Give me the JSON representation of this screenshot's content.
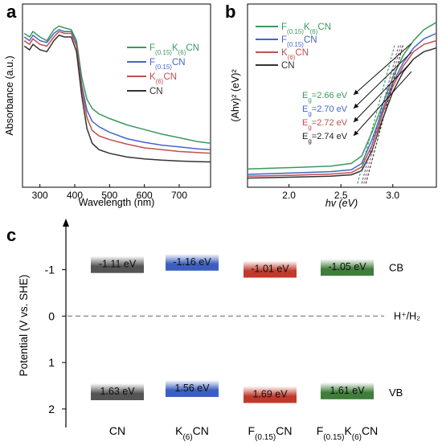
{
  "panels": {
    "a": "a",
    "b": "b",
    "c": "c"
  },
  "chart_data": [
    {
      "panel": "a",
      "type": "line",
      "xlabel": "Wavelength (nm)",
      "ylabel": "Absorbance (a.u.)",
      "xlim": [
        250,
        790
      ],
      "xticks": [
        300,
        400,
        500,
        600,
        700
      ],
      "legend_position": "right",
      "series": [
        {
          "name": "F(0.15)K(6)CN",
          "legend": {
            "base": "F",
            "sub1": "(0.15)",
            "mid": "K",
            "sub2": "(6)",
            "tail": "CN"
          },
          "color": "#3a9a5b",
          "points": [
            [
              255,
              0.84
            ],
            [
              270,
              0.82
            ],
            [
              280,
              0.85
            ],
            [
              300,
              0.82
            ],
            [
              320,
              0.8
            ],
            [
              340,
              0.86
            ],
            [
              355,
              0.88
            ],
            [
              370,
              0.87
            ],
            [
              390,
              0.86
            ],
            [
              405,
              0.8
            ],
            [
              420,
              0.6
            ],
            [
              435,
              0.48
            ],
            [
              450,
              0.43
            ],
            [
              470,
              0.4
            ],
            [
              500,
              0.375
            ],
            [
              550,
              0.34
            ],
            [
              600,
              0.315
            ],
            [
              650,
              0.29
            ],
            [
              700,
              0.27
            ],
            [
              750,
              0.25
            ],
            [
              790,
              0.24
            ]
          ]
        },
        {
          "name": "F(0.15)CN",
          "legend": {
            "base": "F",
            "sub1": "(0.15)",
            "tail": "CN"
          },
          "color": "#4565c9",
          "points": [
            [
              255,
              0.82
            ],
            [
              270,
              0.8
            ],
            [
              280,
              0.83
            ],
            [
              300,
              0.8
            ],
            [
              320,
              0.79
            ],
            [
              340,
              0.84
            ],
            [
              355,
              0.86
            ],
            [
              370,
              0.85
            ],
            [
              390,
              0.85
            ],
            [
              405,
              0.78
            ],
            [
              420,
              0.56
            ],
            [
              435,
              0.42
            ],
            [
              450,
              0.36
            ],
            [
              470,
              0.33
            ],
            [
              500,
              0.3
            ],
            [
              550,
              0.265
            ],
            [
              600,
              0.245
            ],
            [
              650,
              0.23
            ],
            [
              700,
              0.22
            ],
            [
              750,
              0.21
            ],
            [
              790,
              0.205
            ]
          ]
        },
        {
          "name": "K(6)CN",
          "legend": {
            "base": "K",
            "sub1": "(6)",
            "tail": "CN"
          },
          "color": "#c0504d",
          "points": [
            [
              255,
              0.8
            ],
            [
              270,
              0.78
            ],
            [
              280,
              0.81
            ],
            [
              300,
              0.78
            ],
            [
              320,
              0.77
            ],
            [
              340,
              0.82
            ],
            [
              355,
              0.85
            ],
            [
              370,
              0.84
            ],
            [
              390,
              0.84
            ],
            [
              405,
              0.77
            ],
            [
              420,
              0.54
            ],
            [
              435,
              0.38
            ],
            [
              450,
              0.31
            ],
            [
              470,
              0.28
            ],
            [
              500,
              0.26
            ],
            [
              550,
              0.235
            ],
            [
              600,
              0.215
            ],
            [
              650,
              0.205
            ],
            [
              700,
              0.195
            ],
            [
              750,
              0.19
            ],
            [
              790,
              0.185
            ]
          ]
        },
        {
          "name": "CN",
          "legend": {
            "base": "CN"
          },
          "color": "#333333",
          "points": [
            [
              255,
              0.77
            ],
            [
              270,
              0.75
            ],
            [
              280,
              0.78
            ],
            [
              300,
              0.75
            ],
            [
              320,
              0.74
            ],
            [
              340,
              0.8
            ],
            [
              355,
              0.83
            ],
            [
              370,
              0.82
            ],
            [
              390,
              0.82
            ],
            [
              405,
              0.74
            ],
            [
              420,
              0.5
            ],
            [
              435,
              0.32
            ],
            [
              450,
              0.24
            ],
            [
              470,
              0.205
            ],
            [
              500,
              0.185
            ],
            [
              550,
              0.165
            ],
            [
              600,
              0.155
            ],
            [
              650,
              0.148
            ],
            [
              700,
              0.143
            ],
            [
              750,
              0.14
            ],
            [
              790,
              0.138
            ]
          ]
        }
      ]
    },
    {
      "panel": "b",
      "type": "line",
      "xlabel": "hv (eV)",
      "ylabel": "(Ahv)² (eV)²",
      "xlim": [
        1.6,
        3.42
      ],
      "xticks": [
        2.0,
        2.5,
        3.0
      ],
      "xtick_labels": [
        "2.0",
        "2.5",
        "3.0"
      ],
      "legend_position": "top-left",
      "series": [
        {
          "name": "F(0.15)K(6)CN",
          "legend": {
            "base": "F",
            "sub1": "(0.15)",
            "mid": "K",
            "sub2": "(6)",
            "tail": "CN"
          },
          "color": "#3a9a5b",
          "eg": "2.66 eV",
          "points": [
            [
              1.6,
              0.1
            ],
            [
              2.0,
              0.107
            ],
            [
              2.4,
              0.115
            ],
            [
              2.6,
              0.13
            ],
            [
              2.7,
              0.17
            ],
            [
              2.8,
              0.3
            ],
            [
              2.9,
              0.45
            ],
            [
              3.0,
              0.6
            ],
            [
              3.1,
              0.72
            ],
            [
              3.2,
              0.8
            ],
            [
              3.3,
              0.86
            ],
            [
              3.42,
              0.9
            ]
          ]
        },
        {
          "name": "F(0.15)CN",
          "legend": {
            "base": "F",
            "sub1": "(0.15)",
            "tail": "CN"
          },
          "color": "#4565c9",
          "eg": "2.70 eV",
          "points": [
            [
              1.6,
              0.07
            ],
            [
              2.0,
              0.077
            ],
            [
              2.4,
              0.085
            ],
            [
              2.6,
              0.095
            ],
            [
              2.7,
              0.13
            ],
            [
              2.8,
              0.26
            ],
            [
              2.9,
              0.42
            ],
            [
              3.0,
              0.57
            ],
            [
              3.1,
              0.68
            ],
            [
              3.2,
              0.76
            ],
            [
              3.3,
              0.81
            ],
            [
              3.42,
              0.84
            ]
          ]
        },
        {
          "name": "K(6)CN",
          "legend": {
            "base": "K",
            "sub1": "(6)",
            "tail": "CN"
          },
          "color": "#c0504d",
          "eg": "2.72 eV",
          "points": [
            [
              1.6,
              0.06
            ],
            [
              2.0,
              0.065
            ],
            [
              2.4,
              0.072
            ],
            [
              2.6,
              0.08
            ],
            [
              2.7,
              0.11
            ],
            [
              2.8,
              0.23
            ],
            [
              2.9,
              0.4
            ],
            [
              3.0,
              0.55
            ],
            [
              3.1,
              0.66
            ],
            [
              3.2,
              0.74
            ],
            [
              3.3,
              0.78
            ],
            [
              3.42,
              0.8
            ]
          ]
        },
        {
          "name": "CN",
          "legend": {
            "base": "CN"
          },
          "color": "#333333",
          "eg": "2.74 eV",
          "points": [
            [
              1.6,
              0.05
            ],
            [
              2.0,
              0.055
            ],
            [
              2.4,
              0.06
            ],
            [
              2.6,
              0.068
            ],
            [
              2.7,
              0.09
            ],
            [
              2.8,
              0.2
            ],
            [
              2.9,
              0.37
            ],
            [
              3.0,
              0.52
            ],
            [
              3.1,
              0.63
            ],
            [
              3.2,
              0.7
            ],
            [
              3.3,
              0.74
            ],
            [
              3.42,
              0.76
            ]
          ]
        }
      ],
      "eg_labels": [
        {
          "prefix": "E",
          "sub": "g",
          "value": "=2.66 eV",
          "color": "#3a9a5b"
        },
        {
          "prefix": "E",
          "sub": "g",
          "value": "=2.70 eV",
          "color": "#4565c9"
        },
        {
          "prefix": "E",
          "sub": "g",
          "value": "=2.72 eV",
          "color": "#c0504d"
        },
        {
          "prefix": "E",
          "sub": "g",
          "value": "=2.74 eV",
          "color": "#222222"
        }
      ]
    },
    {
      "panel": "c",
      "type": "bar",
      "ylabel": "Potential (V vs. SHE)",
      "ylim": [
        -2.1,
        2.4
      ],
      "yticks": [
        -1,
        0,
        1,
        2
      ],
      "ytick_labels": [
        "-1",
        "0",
        "1",
        "2"
      ],
      "reference_label": "H⁺/H₂",
      "band_labels": {
        "cb": "CB",
        "vb": "VB"
      },
      "categories": [
        {
          "name": "CN",
          "parts": {
            "base": "CN"
          },
          "cb": -1.11,
          "vb": 1.63,
          "cb_label": "-1.11 eV",
          "vb_label": "1.63 eV",
          "color": "#555555"
        },
        {
          "name": "K(6)CN",
          "parts": {
            "base": "K",
            "sub1": "(6)",
            "tail": "CN"
          },
          "cb": -1.16,
          "vb": 1.56,
          "cb_label": "-1.16 eV",
          "vb_label": "1.56 eV",
          "color": "#3b5fc0"
        },
        {
          "name": "F(0.15)CN",
          "parts": {
            "base": "F",
            "sub1": "(0.15)",
            "tail": "CN"
          },
          "cb": -1.01,
          "vb": 1.69,
          "cb_label": "-1.01 eV",
          "vb_label": "1.69 eV",
          "color": "#c0392b"
        },
        {
          "name": "F(0.15)K(6)CN",
          "parts": {
            "base": "F",
            "sub1": "(0.15)",
            "mid": "K",
            "sub2": "(6)",
            "tail": "CN"
          },
          "cb": -1.05,
          "vb": 1.61,
          "cb_label": "-1.05 eV",
          "vb_label": "1.61 eV",
          "color": "#3e7d3a"
        }
      ]
    }
  ]
}
